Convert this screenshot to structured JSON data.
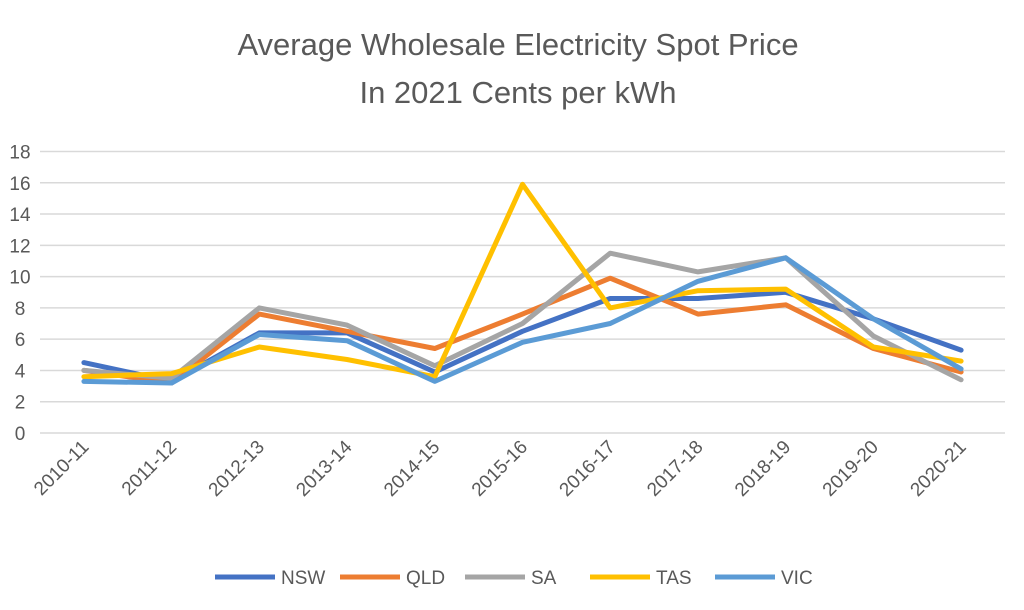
{
  "chart_data": {
    "type": "line",
    "title": [
      "Average Wholesale Electricity Spot Price",
      "In 2021 Cents per kWh"
    ],
    "xlabel": "",
    "ylabel": "",
    "ylim": [
      0,
      18
    ],
    "yticks": [
      0,
      2,
      4,
      6,
      8,
      10,
      12,
      14,
      16,
      18
    ],
    "grid": true,
    "legend": "bottom",
    "categories": [
      "2010-11",
      "2011-12",
      "2012-13",
      "2013-14",
      "2014-15",
      "2015-16",
      "2016-17",
      "2017-18",
      "2018-19",
      "2019-20",
      "2020-21"
    ],
    "series": [
      {
        "name": "NSW",
        "color": "#4472c4",
        "values": [
          4.5,
          3.3,
          6.4,
          6.4,
          3.9,
          6.5,
          8.6,
          8.6,
          9.0,
          7.3,
          5.3
        ]
      },
      {
        "name": "QLD",
        "color": "#ed7d31",
        "values": [
          4.0,
          3.2,
          7.6,
          6.5,
          5.4,
          7.6,
          9.9,
          7.6,
          8.2,
          5.4,
          3.9
        ]
      },
      {
        "name": "SA",
        "color": "#a5a5a5",
        "values": [
          4.0,
          3.5,
          8.0,
          6.9,
          4.3,
          7.0,
          11.5,
          10.3,
          11.2,
          6.2,
          3.4
        ]
      },
      {
        "name": "TAS",
        "color": "#ffc000",
        "values": [
          3.6,
          3.8,
          5.5,
          4.7,
          3.6,
          15.9,
          8.0,
          9.1,
          9.2,
          5.5,
          4.6
        ]
      },
      {
        "name": "VIC",
        "color": "#5b9bd5",
        "values": [
          3.3,
          3.2,
          6.3,
          5.9,
          3.3,
          5.8,
          7.0,
          9.7,
          11.2,
          7.3,
          4.1
        ]
      }
    ]
  }
}
